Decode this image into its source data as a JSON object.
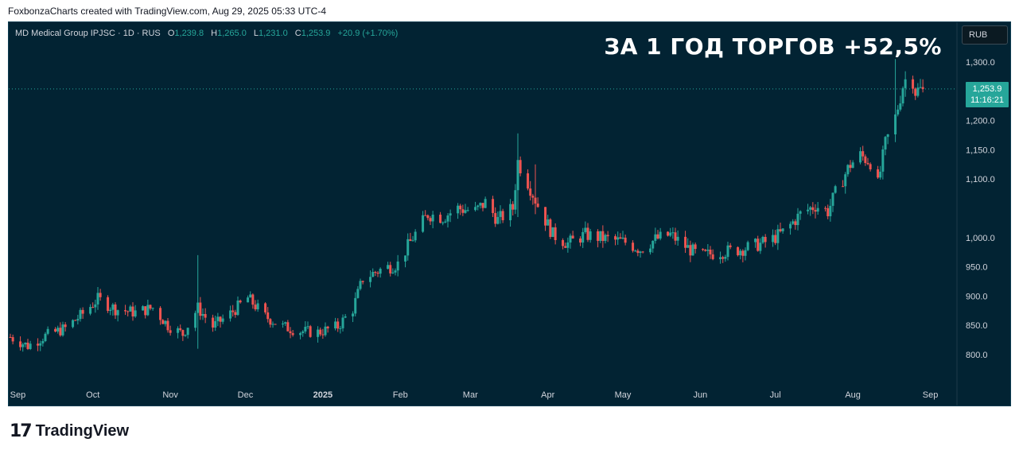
{
  "attribution": "FoxbonzaCharts created with TradingView.com, Aug 29, 2025 05:33 UTC-4",
  "symbol": {
    "title": "MD Medical Group IPJSC · 1D · RUS",
    "open_label": "O",
    "open": "1,239.8",
    "high_label": "H",
    "high": "1,265.0",
    "low_label": "L",
    "low": "1,231.0",
    "close_label": "C",
    "close": "1,253.9",
    "change": "+20.9 (+1.70%)"
  },
  "headline": "ЗА 1 ГОД ТОРГОВ +52,5%",
  "currency_button": "RUB",
  "price_tag": {
    "price": "1,253.9",
    "countdown": "11:16:21"
  },
  "logo": {
    "mark": "17",
    "text": "TradingView"
  },
  "colors": {
    "background": "#022333",
    "up": "#26a69a",
    "down": "#ef5350",
    "axis_text": "#d1d4dc"
  },
  "chart_data": {
    "type": "candlestick",
    "ylim": [
      770,
      1325
    ],
    "y_ticks": [
      800,
      850,
      900,
      950,
      1000,
      1050,
      1100,
      1150,
      1200,
      1250,
      1300
    ],
    "y_tick_labels": [
      "800.0",
      "850.0",
      "900.0",
      "950.0",
      "1,000.0",
      "",
      "1,100.0",
      "1,150.0",
      "1,200.0",
      "",
      "1,300.0"
    ],
    "x_labels": [
      "Sep",
      "Oct",
      "Nov",
      "Dec",
      "2025",
      "Feb",
      "Mar",
      "Apr",
      "May",
      "Jun",
      "Jul",
      "Aug",
      "Sep"
    ],
    "x_label_dates": [
      "2024-09-01",
      "2024-10-01",
      "2024-11-01",
      "2024-12-01",
      "2025-01-01",
      "2025-02-01",
      "2025-03-01",
      "2025-04-01",
      "2025-05-01",
      "2025-06-01",
      "2025-07-01",
      "2025-08-01",
      "2025-09-01"
    ],
    "series_name": "MD Medical Group IPJSC",
    "last_price": 1253.9,
    "close_path": [
      [
        "2024-08-29",
        830
      ],
      [
        "2024-09-05",
        815
      ],
      [
        "2024-09-12",
        832
      ],
      [
        "2024-09-20",
        845
      ],
      [
        "2024-09-27",
        870
      ],
      [
        "2024-10-03",
        895
      ],
      [
        "2024-10-10",
        878
      ],
      [
        "2024-10-18",
        872
      ],
      [
        "2024-10-25",
        880
      ],
      [
        "2024-10-31",
        850
      ],
      [
        "2024-11-06",
        835
      ],
      [
        "2024-11-12",
        880
      ],
      [
        "2024-11-18",
        848
      ],
      [
        "2024-11-25",
        870
      ],
      [
        "2024-12-02",
        897
      ],
      [
        "2024-12-09",
        865
      ],
      [
        "2024-12-16",
        848
      ],
      [
        "2024-12-23",
        840
      ],
      [
        "2024-12-30",
        838
      ],
      [
        "2025-01-07",
        848
      ],
      [
        "2025-01-13",
        878
      ],
      [
        "2025-01-17",
        930
      ],
      [
        "2025-01-24",
        945
      ],
      [
        "2025-01-31",
        955
      ],
      [
        "2025-02-06",
        1000
      ],
      [
        "2025-02-12",
        1040
      ],
      [
        "2025-02-18",
        1035
      ],
      [
        "2025-02-24",
        1050
      ],
      [
        "2025-03-03",
        1045
      ],
      [
        "2025-03-07",
        1060
      ],
      [
        "2025-03-12",
        1030
      ],
      [
        "2025-03-18",
        1050
      ],
      [
        "2025-03-20",
        1130
      ],
      [
        "2025-03-24",
        1095
      ],
      [
        "2025-03-28",
        1055
      ],
      [
        "2025-04-03",
        1005
      ],
      [
        "2025-04-09",
        990
      ],
      [
        "2025-04-16",
        1005
      ],
      [
        "2025-04-24",
        998
      ],
      [
        "2025-05-02",
        992
      ],
      [
        "2025-05-08",
        980
      ],
      [
        "2025-05-14",
        997
      ],
      [
        "2025-05-20",
        1005
      ],
      [
        "2025-05-26",
        985
      ],
      [
        "2025-06-01",
        968
      ],
      [
        "2025-06-08",
        975
      ],
      [
        "2025-06-15",
        978
      ],
      [
        "2025-06-22",
        985
      ],
      [
        "2025-06-29",
        995
      ],
      [
        "2025-07-05",
        1012
      ],
      [
        "2025-07-11",
        1040
      ],
      [
        "2025-07-17",
        1055
      ],
      [
        "2025-07-22",
        1045
      ],
      [
        "2025-07-26",
        1085
      ],
      [
        "2025-07-31",
        1125
      ],
      [
        "2025-08-04",
        1140
      ],
      [
        "2025-08-08",
        1130
      ],
      [
        "2025-08-11",
        1090
      ],
      [
        "2025-08-14",
        1160
      ],
      [
        "2025-08-18",
        1205
      ],
      [
        "2025-08-21",
        1260
      ],
      [
        "2025-08-24",
        1290
      ],
      [
        "2025-08-26",
        1250
      ],
      [
        "2025-08-29",
        1253.9
      ]
    ],
    "spikes": [
      [
        "2024-11-12",
        970,
        810
      ],
      [
        "2025-03-20",
        1178,
        1035
      ],
      [
        "2025-03-27",
        1125,
        1040
      ],
      [
        "2025-08-18",
        1305,
        1180
      ]
    ]
  }
}
